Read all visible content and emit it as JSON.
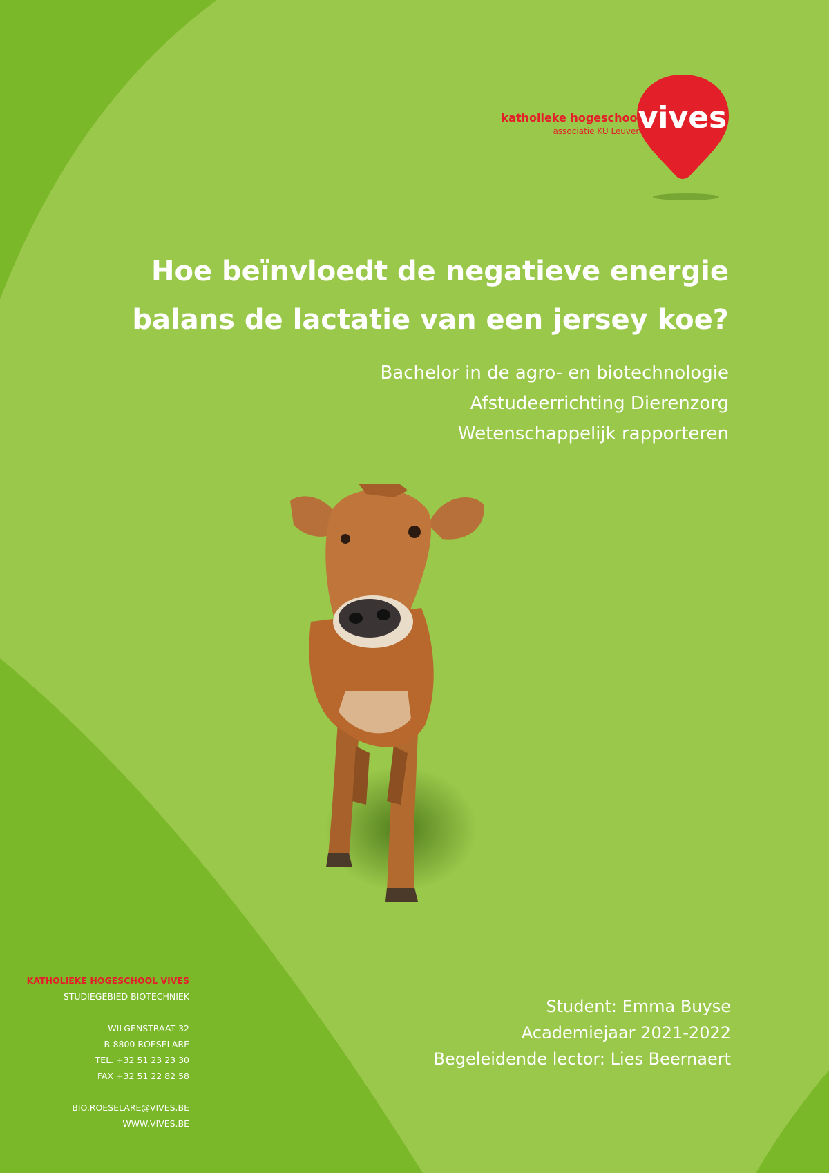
{
  "colors": {
    "background_dark": "#7ab82a",
    "background_light": "#9ac84a",
    "brand_red": "#e3202a",
    "text": "#ffffff"
  },
  "logo": {
    "line1": "katholieke hogeschool",
    "line2": "associatie KU Leuven",
    "wordmark": "vives"
  },
  "title": {
    "line1": "Hoe beïnvloedt de negatieve energie",
    "line2": "balans de lactatie van een jersey koe?"
  },
  "subtitles": [
    "Bachelor in de agro- en biotechnologie",
    "Afstudeerrichting Dierenzorg",
    "Wetenschappelijk rapporteren"
  ],
  "student_info": [
    "Student: Emma Buyse",
    "Academiejaar 2021-2022",
    "Begeleidende lector: Lies Beernaert"
  ],
  "address": {
    "institution": "KATHOLIEKE HOGESCHOOL  VIVES",
    "department": "STUDIEGEBIED BIOTECHNIEK",
    "street": "WILGENSTRAAT 32",
    "city": "B-8800 ROESELARE",
    "tel": "TEL. +32 51 23 23 30",
    "fax": "FAX +32 51 22 82 58",
    "email": "BIO.ROESELARE@VIVES.BE",
    "website": "WWW.VIVES.BE"
  },
  "image": {
    "subject": "jersey-cow"
  }
}
